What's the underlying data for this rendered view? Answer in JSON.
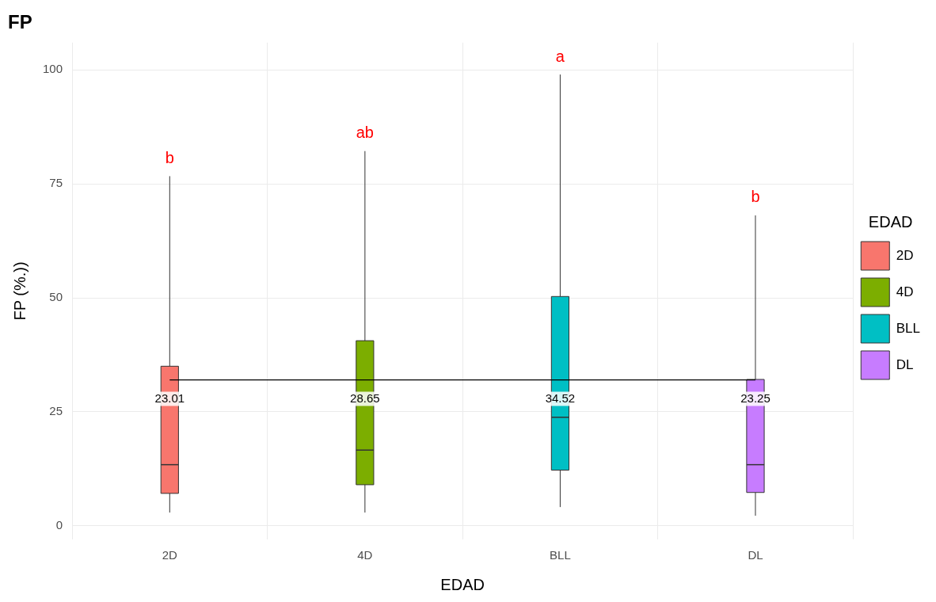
{
  "chart_data": {
    "type": "box",
    "title": "FP",
    "xlabel": "EDAD",
    "ylabel": "FP (%.))",
    "legend_title": "EDAD",
    "legend": "right",
    "grid": true,
    "categories": [
      "2D",
      "4D",
      "BLL",
      "DL"
    ],
    "series": [
      {
        "name": "2D",
        "color": "#f8766d",
        "boxes": [
          {
            "low": 2.9,
            "q1": 7.1,
            "median": 13.4,
            "q3": 35.0,
            "high": 76.7
          },
          null,
          null,
          null
        ]
      },
      {
        "name": "4D",
        "color": "#7cae00",
        "boxes": [
          null,
          {
            "low": 2.9,
            "q1": 9.0,
            "median": 16.6,
            "q3": 40.6,
            "high": 82.2
          },
          null,
          null
        ]
      },
      {
        "name": "BLL",
        "color": "#00bfc4",
        "boxes": [
          null,
          null,
          {
            "low": 4.1,
            "q1": 12.2,
            "median": 23.8,
            "q3": 50.3,
            "high": 99
          },
          null
        ]
      },
      {
        "name": "DL",
        "color": "#c77cff",
        "boxes": [
          null,
          null,
          null,
          {
            "low": 2.2,
            "q1": 7.3,
            "median": 13.4,
            "q3": 32.1,
            "high": 68.1
          }
        ]
      }
    ],
    "ylim": [
      -3,
      106
    ],
    "yticks": [
      0,
      25,
      50,
      75,
      100
    ],
    "ref_lines": [
      {
        "axis": "y",
        "value": 32,
        "color": "#000000"
      }
    ],
    "annotations": [
      "b",
      "ab",
      "a",
      "b",
      "23.01",
      "28.65",
      "34.52",
      "23.25"
    ]
  }
}
